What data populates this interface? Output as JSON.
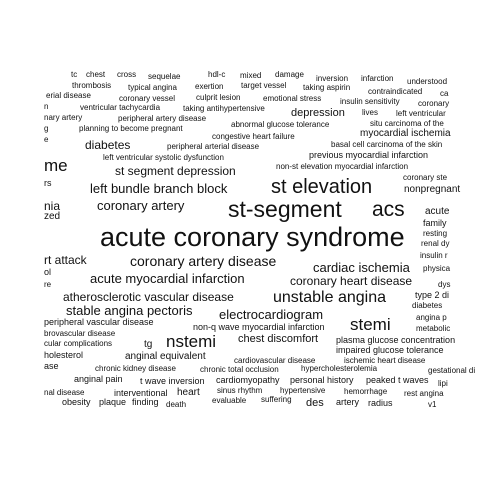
{
  "words": [
    "tc",
    "chest",
    "cross",
    "sequelae",
    "hdl-c",
    "mixed",
    "damage",
    "inversion",
    "infarction",
    "understood",
    "thrombosis",
    "typical angina",
    "exertion",
    "target vessel",
    "taking aspirin",
    "contraindicated",
    "ca",
    "erial disease",
    "coronary vessel",
    "culprit lesion",
    "emotional stress",
    "insulin sensitivity",
    "coronary",
    "n",
    "ventricular tachycardia",
    "taking antihypertensive",
    "depression",
    "lives",
    "left ventricular",
    "nary artery",
    "peripheral artery disease",
    "situ carcinoma of the",
    "g",
    "planning to become pregnant",
    "abnormal glucose tolerance",
    "myocardial ischemia",
    "e",
    "congestive heart failure",
    "basal cell carcinoma of the skin",
    "diabetes",
    "peripheral arterial disease",
    "left ventricular systolic dysfunction",
    "previous myocardial infarction",
    "me",
    "non-st elevation myocardial infarction",
    "st segment depression",
    "coronary ste",
    "rs",
    "left bundle branch block",
    "st elevation",
    "nonpregnant",
    "coronary artery",
    "st-segment",
    "acs",
    "nia",
    "acute",
    "zed",
    "family",
    "resting",
    "acute coronary syndrome",
    "renal dy",
    "insulin r",
    "rt attack",
    "coronary artery disease",
    "cardiac ischemia",
    "physica",
    "ol",
    "acute myocardial infarction",
    "coronary heart disease",
    "re",
    "dys",
    "atherosclerotic vascular disease",
    "unstable angina",
    "type 2 di",
    "stable angina pectoris",
    "diabetes",
    "angina p",
    "electrocardiogram",
    "peripheral vascular disease",
    "stemi",
    "metabolic",
    "non-q wave myocardial infarction",
    "brovascular disease",
    "nstemi",
    "chest discomfort",
    "plasma glucose concentration",
    "cular complications",
    "tg",
    "impaired glucose tolerance",
    "holesterol",
    "anginal equivalent",
    "cardiovascular disease",
    "ischemic heart disease",
    "ase",
    "chronic kidney disease",
    "chronic total occlusion",
    "hypercholesterolemia",
    "gestational di",
    "anginal pain",
    "t wave inversion",
    "cardiomyopathy",
    "personal history",
    "peaked t waves",
    "lipi",
    "nal disease",
    "interventional",
    "heart",
    "sinus rhythm",
    "hypertensive",
    "hemorrhage",
    "rest angina",
    "obesity",
    "plaque",
    "finding",
    "death",
    "evaluable",
    "suffering",
    "des",
    "artery",
    "radius",
    "v1"
  ],
  "word_color": "#111111",
  "background": "#ffffff"
}
